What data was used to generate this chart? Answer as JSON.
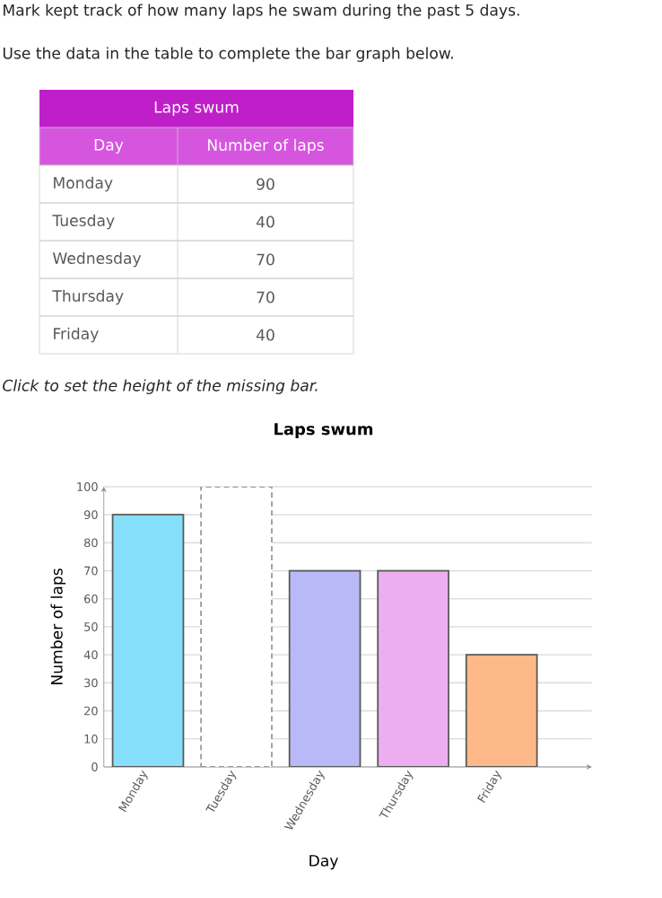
{
  "chart_data": {
    "type": "bar",
    "title": "Laps swum",
    "xlabel": "Day",
    "ylabel": "Number of laps",
    "categories": [
      "Monday",
      "Tuesday",
      "Wednesday",
      "Thursday",
      "Friday"
    ],
    "series": [
      {
        "values": [
          90,
          null,
          70,
          70,
          40
        ],
        "colors": [
          "#87e0fb",
          "#ffffff",
          "#b9b9f7",
          "#ecaef0",
          "#feb98a"
        ]
      },
      {
        "values": [
          null,
          100,
          null,
          null,
          null
        ],
        "color": "#ffffff",
        "line_style": "dashed"
      }
    ],
    "ylim": [
      0,
      100
    ],
    "yticks": [
      0,
      10,
      20,
      30,
      40,
      50,
      60,
      70,
      80,
      90,
      100
    ],
    "grid": "y",
    "annotations": [
      "Mark kept track of how many laps he swam during the past 5 days.",
      "Use the data in the table to complete the bar graph below.",
      "Laps swum",
      "Day",
      "Number of laps",
      "Monday",
      "90",
      "Tuesday",
      "40",
      "Wednesday",
      "70",
      "Thursday",
      "70",
      "Friday",
      "40",
      "Click to set the height of the missing bar."
    ]
  }
}
